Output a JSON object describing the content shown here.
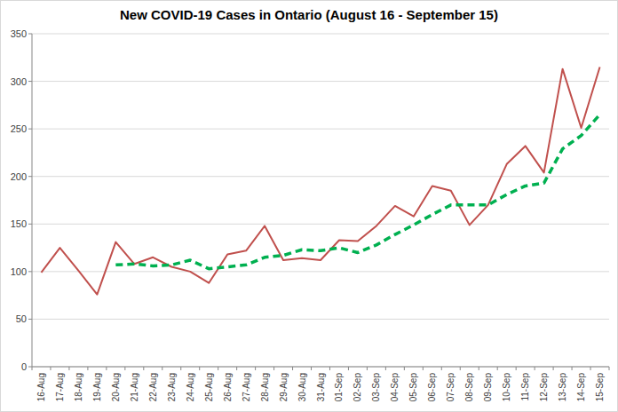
{
  "chart_data": {
    "type": "line",
    "title": "New COVID-19 Cases in Ontario (August 16 - September 15)",
    "categories": [
      "16-Aug",
      "17-Aug",
      "18-Aug",
      "19-Aug",
      "20-Aug",
      "21-Aug",
      "22-Aug",
      "23-Aug",
      "24-Aug",
      "25-Aug",
      "26-Aug",
      "27-Aug",
      "28-Aug",
      "29-Aug",
      "30-Aug",
      "31-Aug",
      "01-Sep",
      "02-Sep",
      "03-Sep",
      "04-Sep",
      "05-Sep",
      "06-Sep",
      "07-Sep",
      "08-Sep",
      "09-Sep",
      "10-Sep",
      "11-Sep",
      "12-Sep",
      "13-Sep",
      "14-Sep",
      "15-Sep"
    ],
    "series": [
      {
        "color": "#c0504d",
        "line_style": "solid",
        "values": [
          99,
          125,
          101,
          76,
          131,
          108,
          115,
          105,
          100,
          88,
          118,
          122,
          148,
          112,
          114,
          112,
          133,
          132,
          148,
          169,
          158,
          190,
          185,
          149,
          170,
          213,
          232,
          204,
          313,
          251,
          315
        ]
      },
      {
        "color": "#00b050",
        "line_style": "dashed",
        "values": [
          null,
          null,
          null,
          null,
          107,
          108,
          106,
          107,
          112,
          103,
          105,
          107,
          115,
          117,
          123,
          122,
          125,
          120,
          128,
          139,
          149,
          160,
          170,
          170,
          170,
          181,
          190,
          193,
          229,
          243,
          265
        ]
      }
    ],
    "ylim": [
      0,
      350
    ],
    "yticks": [
      0,
      50,
      100,
      150,
      200,
      250,
      300,
      350
    ],
    "grid": true
  }
}
